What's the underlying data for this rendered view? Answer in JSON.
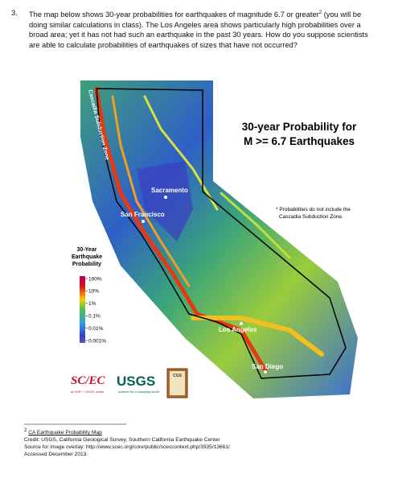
{
  "question": {
    "number": "3.",
    "text_before": "The map below shows 30-year probabilities for earthquakes of magnitude 6.7 or greater",
    "footnote_ref": "2",
    "text_after": " (you will be doing similar calculations in class).  The Los Angeles area shows particularly high probabilities over a broad area; yet it has not had such an earthquake in the past 30 years.  How do you suppose scientists are able to calculate probabilities of earthquakes of sizes that have not occurred?"
  },
  "map": {
    "title_lines": [
      "30-year Probability for",
      "M >= 6.7 Earthquakes"
    ],
    "note_lines": [
      "* Probabilities do not include the",
      "Cascadia Subduction Zone."
    ],
    "places": {
      "cascadia": "Cascadia Subduction Zone",
      "sacramento": "Sacramento",
      "san_francisco": "San Francisco",
      "los_angeles": "Los Angeles",
      "san_diego": "San Diego"
    },
    "legend": {
      "title_lines": [
        "30-Year",
        "Earthquake",
        "Probability"
      ],
      "scale_labels": [
        "100%",
        "10%",
        "1%",
        "0.1%",
        "0.01%",
        "0.001%"
      ]
    },
    "logos": {
      "scec": "SC/EC",
      "scec_tagline": "an NSF + USGS center",
      "usgs": "USGS",
      "usgs_tagline": "science for a changing world",
      "cgs": "CGS"
    }
  },
  "footnote": {
    "number": "2",
    "link": "CA Earthquake Probability Map",
    "lines": [
      "Credit: USGS, California Geological Survey, Southern California Earthquake Center",
      "Source for image overlay: http://www.scec.org/core/public/sceccontext.php/3935/13661/",
      "Accessed December 2013"
    ]
  }
}
